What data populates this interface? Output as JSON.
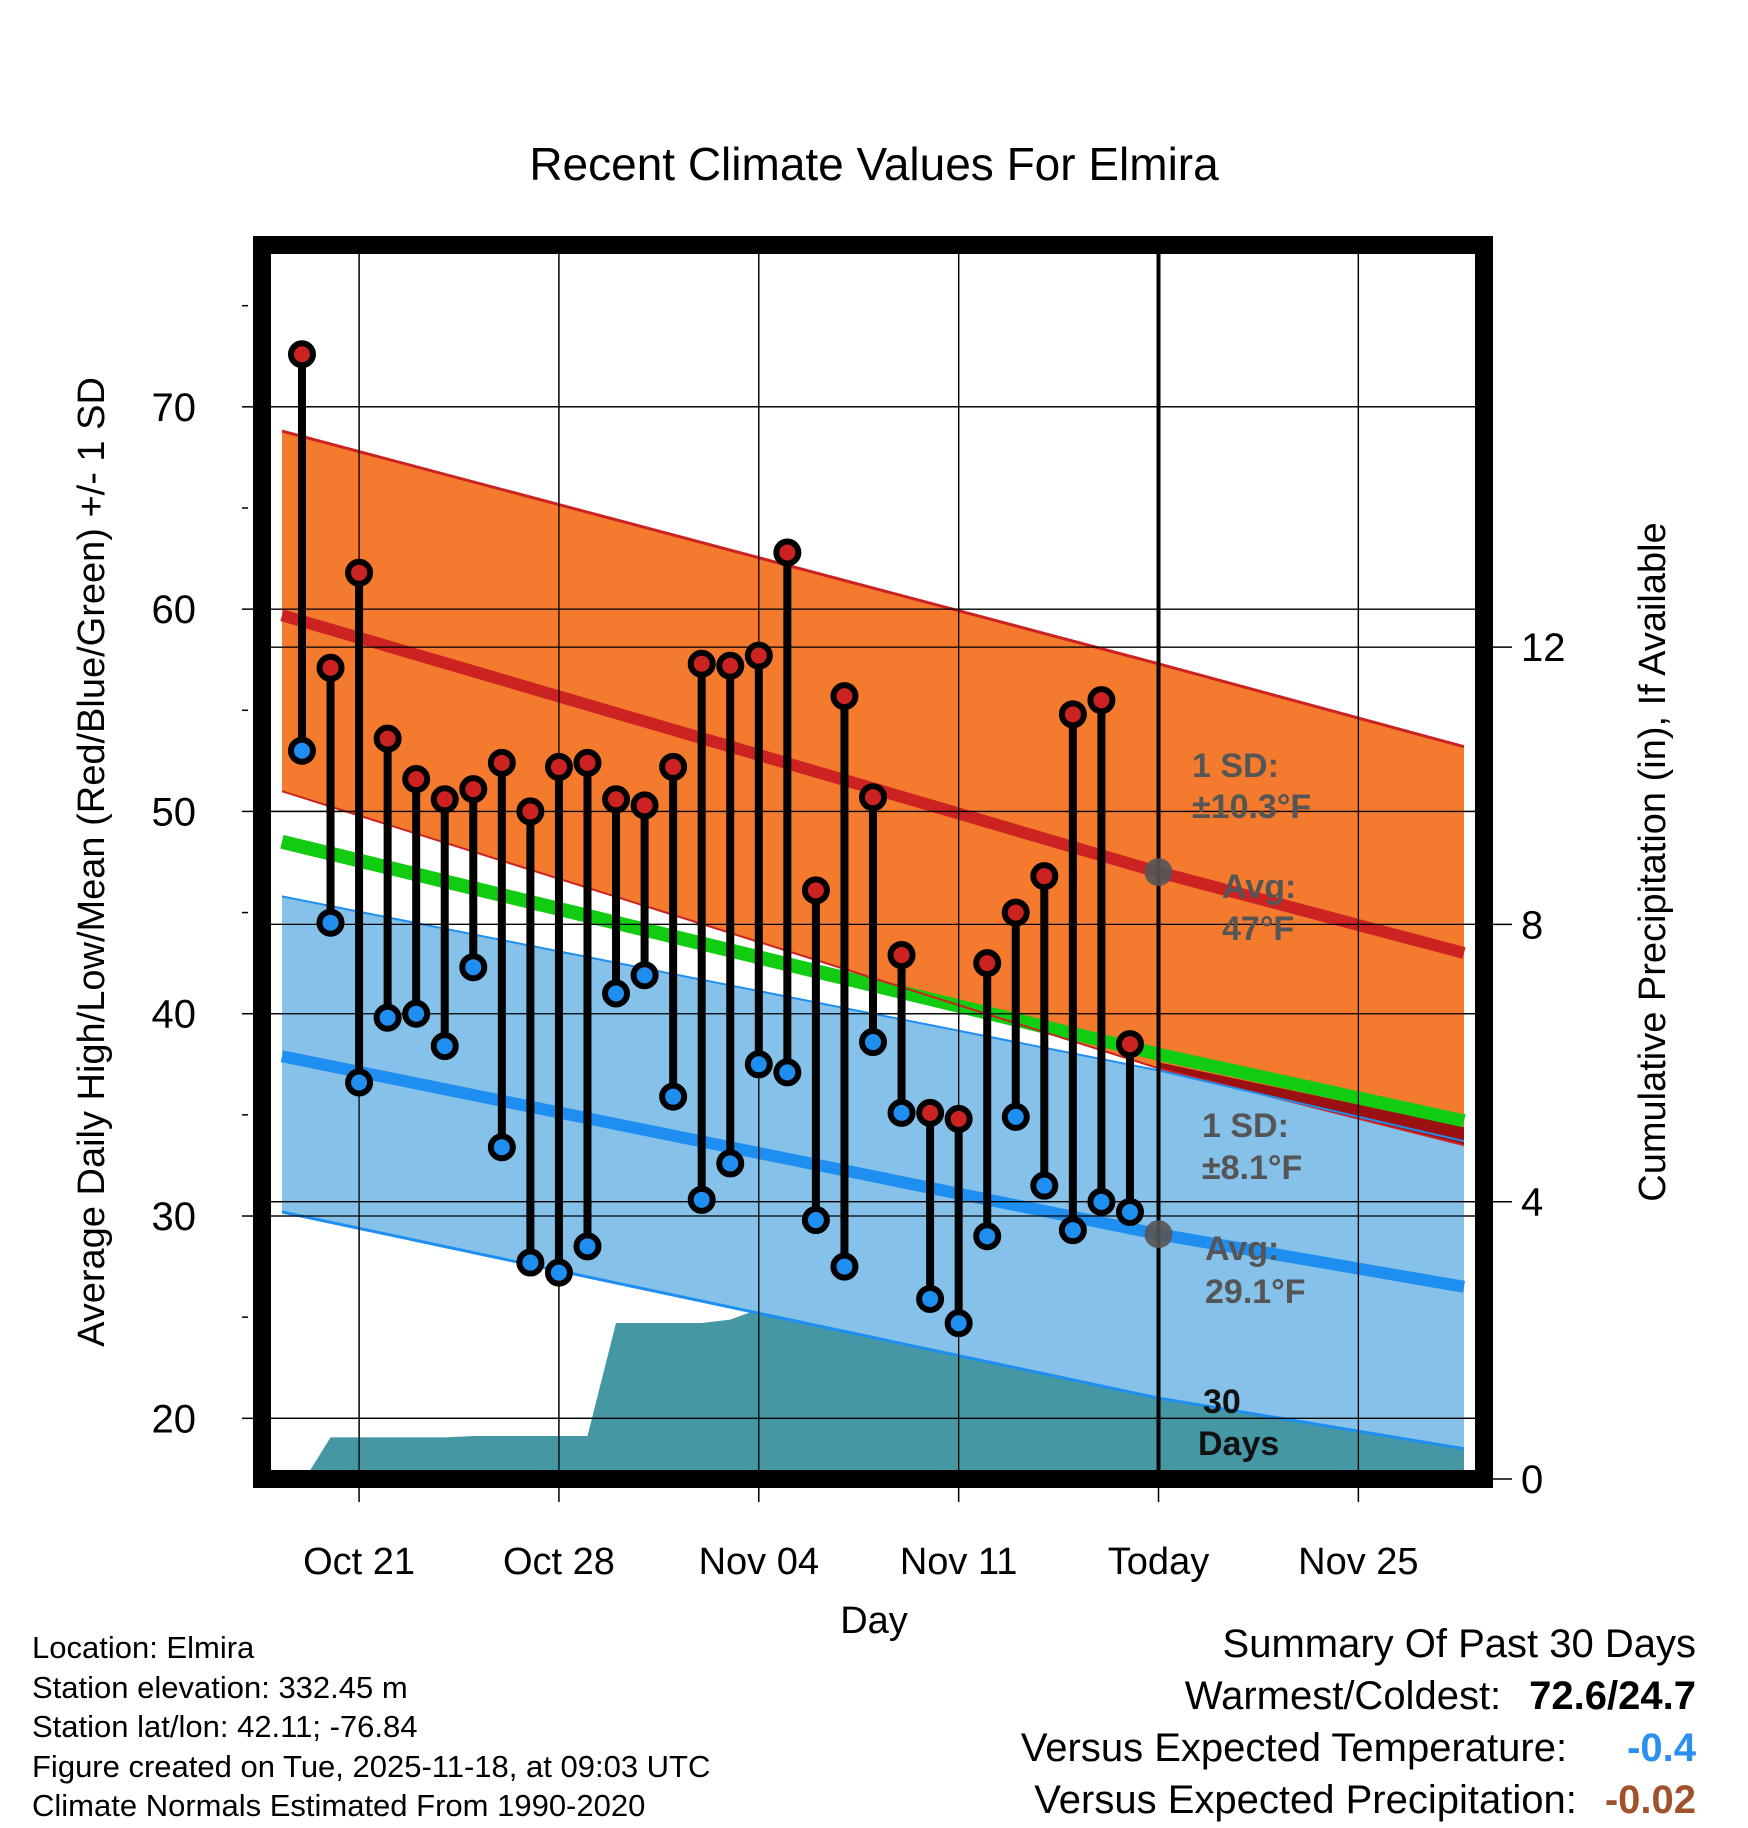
{
  "chart_data": {
    "type": "line",
    "title": "Recent Climate Values For Elmira",
    "xlabel": "Day",
    "ylabel": "Average Daily High/Low/Mean (Red/Blue/Green) +/- 1 SD",
    "y2label": "Cumulative Precipitation (in), If Available",
    "ylim": [
      17,
      78
    ],
    "y2lim": [
      0,
      17.8
    ],
    "xlim": [
      -3.4,
      39.4
    ],
    "x_ticks": [
      {
        "x": 0,
        "label": "Oct 21"
      },
      {
        "x": 7,
        "label": "Oct 28"
      },
      {
        "x": 14,
        "label": "Nov 04"
      },
      {
        "x": 21,
        "label": "Nov 11"
      },
      {
        "x": 28,
        "label": "Today"
      },
      {
        "x": 35,
        "label": "Nov 25"
      }
    ],
    "y_ticks": [
      20,
      30,
      40,
      50,
      60,
      70
    ],
    "y2_ticks": [
      0,
      4,
      8,
      12
    ],
    "today_x": 28,
    "normals": {
      "x": [
        -2.7,
        28,
        38.7
      ],
      "high_avg": [
        59.7,
        47.0,
        43.0
      ],
      "high_upper": [
        68.8,
        57.3,
        53.2
      ],
      "high_lower": [
        51.0,
        37.3,
        33.5
      ],
      "mean_avg": [
        48.5,
        38.0,
        34.7
      ],
      "low_avg": [
        37.9,
        29.1,
        26.5
      ],
      "low_upper": [
        45.8,
        37.2,
        33.7
      ],
      "low_lower": [
        30.2,
        21.0,
        18.5
      ]
    },
    "days": {
      "x": [
        -2,
        -1,
        0,
        1,
        2,
        3,
        4,
        5,
        6,
        7,
        8,
        9,
        10,
        11,
        12,
        13,
        14,
        15,
        16,
        17,
        18,
        19,
        20,
        21,
        22,
        23,
        24,
        25,
        26,
        27
      ],
      "highs": [
        72.6,
        57.1,
        61.8,
        53.6,
        51.6,
        50.6,
        51.1,
        52.4,
        50.0,
        52.2,
        52.4,
        50.6,
        50.3,
        52.2,
        57.3,
        57.2,
        57.7,
        62.8,
        46.1,
        55.7,
        50.7,
        42.9,
        35.1,
        34.8,
        42.5,
        45.0,
        46.8,
        54.8,
        55.5,
        38.5
      ],
      "lows": [
        53.0,
        44.5,
        36.6,
        39.8,
        40.0,
        38.4,
        42.3,
        33.4,
        27.7,
        27.2,
        28.5,
        41.0,
        41.9,
        35.9,
        30.8,
        32.6,
        37.5,
        37.1,
        29.8,
        27.5,
        38.6,
        35.1,
        25.9,
        24.7,
        29.0,
        34.9,
        31.5,
        29.3,
        30.7,
        30.2
      ]
    },
    "precip": {
      "x": [
        -2.7,
        -1.9,
        -1.0,
        0.0,
        1.0,
        2.0,
        3.0,
        4.0,
        5.0,
        6.0,
        7.0,
        8.0,
        9.0,
        10.0,
        11.0,
        12.0,
        13.0,
        14.0,
        15.0,
        16.0,
        17.0,
        18.0,
        19.0,
        20.0,
        21.0,
        22.0,
        23.0,
        24.0,
        25.0,
        26.0,
        27.0,
        28.0,
        38.7
      ],
      "cumulative": [
        0.0,
        0.0,
        0.6,
        0.6,
        0.6,
        0.6,
        0.6,
        0.62,
        0.62,
        0.62,
        0.62,
        0.62,
        2.25,
        2.25,
        2.25,
        2.25,
        2.3,
        2.45,
        2.45,
        2.6,
        2.6,
        2.62,
        2.65,
        2.75,
        2.8,
        2.82,
        2.85,
        2.88,
        3.0,
        3.0,
        3.0,
        3.0,
        3.0
      ]
    },
    "annotations": {
      "high_sd_label": "1 SD:",
      "high_sd_value": "±10.3°F",
      "high_avg_label": "Avg:",
      "high_avg_value": "47°F",
      "low_sd_label": "1 SD:",
      "low_sd_value": "±8.1°F",
      "low_avg_label": "Avg:",
      "low_avg_value": "29.1°F",
      "days_num": "30",
      "days_word": "Days"
    },
    "colors": {
      "high_band": "#f47a2e",
      "high_line": "#cc2222",
      "high_edge": "#cc2222",
      "mean_line": "#11cc11",
      "low_band": "#85c1e8",
      "low_line": "#1e8ff0",
      "low_edge": "#1e8ff0",
      "precip": "#4597a3",
      "high_dot": "#cc2222",
      "low_dot": "#1e8ff0",
      "annotation": "#555555",
      "overlap": "#9b1010"
    }
  },
  "info": {
    "location": "Location: Elmira",
    "elevation": "Station elevation: 332.45 m",
    "latlon": "Station lat/lon: 42.11; -76.84",
    "created": "Figure created on Tue, 2025-11-18, at 09:03 UTC",
    "normals": "Climate Normals Estimated From 1990-2020"
  },
  "summary": {
    "heading": "Summary Of Past 30 Days",
    "warm_cold_label": "Warmest/Coldest:",
    "warm_cold_value": "72.6/24.7",
    "temp_label": "Versus Expected Temperature:",
    "temp_value": "-0.4",
    "temp_color": "#2a8ff0",
    "precip_label": "Versus Expected Precipitation:",
    "precip_value": "-0.02",
    "precip_color": "#a0522d"
  }
}
